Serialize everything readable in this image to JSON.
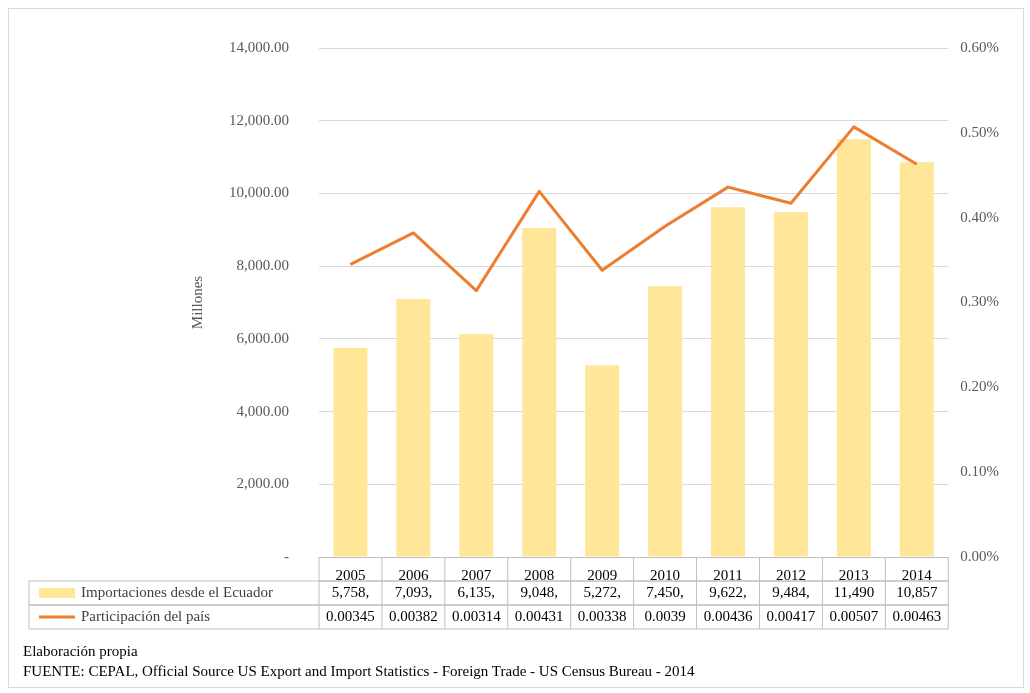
{
  "chart_data": {
    "type": "bar",
    "ylabel": "Millones",
    "categories": [
      "2005",
      "2006",
      "2007",
      "2008",
      "2009",
      "2010",
      "2011",
      "2012",
      "2013",
      "2014"
    ],
    "series": [
      {
        "name": "Importaciones desde el Ecuador",
        "color": "#ffe699",
        "values": [
          5758,
          7093,
          6135,
          9048,
          5272,
          7450,
          9622,
          9484,
          11490,
          10857
        ],
        "value_labels": [
          "5,758,",
          "7,093,",
          "6,135,",
          "9,048,",
          "5,272,",
          "7,450,",
          "9,622,",
          "9,484,",
          "11,490",
          "10,857"
        ]
      },
      {
        "name": "Participación del país",
        "type": "line",
        "axis": "y2",
        "color": "#ed7d31",
        "values": [
          0.00345,
          0.00382,
          0.00314,
          0.00431,
          0.00338,
          0.0039,
          0.00436,
          0.00417,
          0.00507,
          0.00463
        ],
        "value_labels": [
          "0.00345",
          "0.00382",
          "0.00314",
          "0.00431",
          "0.00338",
          "0.0039",
          "0.00436",
          "0.00417",
          "0.00507",
          "0.00463"
        ]
      }
    ],
    "ylim": [
      0,
      14000
    ],
    "yticks": [
      {
        "value": 0,
        "label": "-"
      },
      {
        "value": 2000,
        "label": "2,000.00"
      },
      {
        "value": 4000,
        "label": "4,000.00"
      },
      {
        "value": 6000,
        "label": "6,000.00"
      },
      {
        "value": 8000,
        "label": "8,000.00"
      },
      {
        "value": 10000,
        "label": "10,000.00"
      },
      {
        "value": 12000,
        "label": "12,000.00"
      },
      {
        "value": 14000,
        "label": "14,000.00"
      }
    ],
    "y2lim": [
      0,
      0.006
    ],
    "y2ticks": [
      {
        "value": 0,
        "label": "0.00%"
      },
      {
        "value": 0.001,
        "label": "0.10%"
      },
      {
        "value": 0.002,
        "label": "0.20%"
      },
      {
        "value": 0.003,
        "label": "0.30%"
      },
      {
        "value": 0.004,
        "label": "0.40%"
      },
      {
        "value": 0.005,
        "label": "0.50%"
      },
      {
        "value": 0.006,
        "label": "0.60%"
      }
    ],
    "grid": "y",
    "legend": "bottom",
    "marker": "none",
    "annotations": [
      "Elaboración propia",
      "FUENTE: CEPAL, Official Source US Export and Import Statistics - Foreign Trade - US Census Bureau - 2014"
    ]
  }
}
